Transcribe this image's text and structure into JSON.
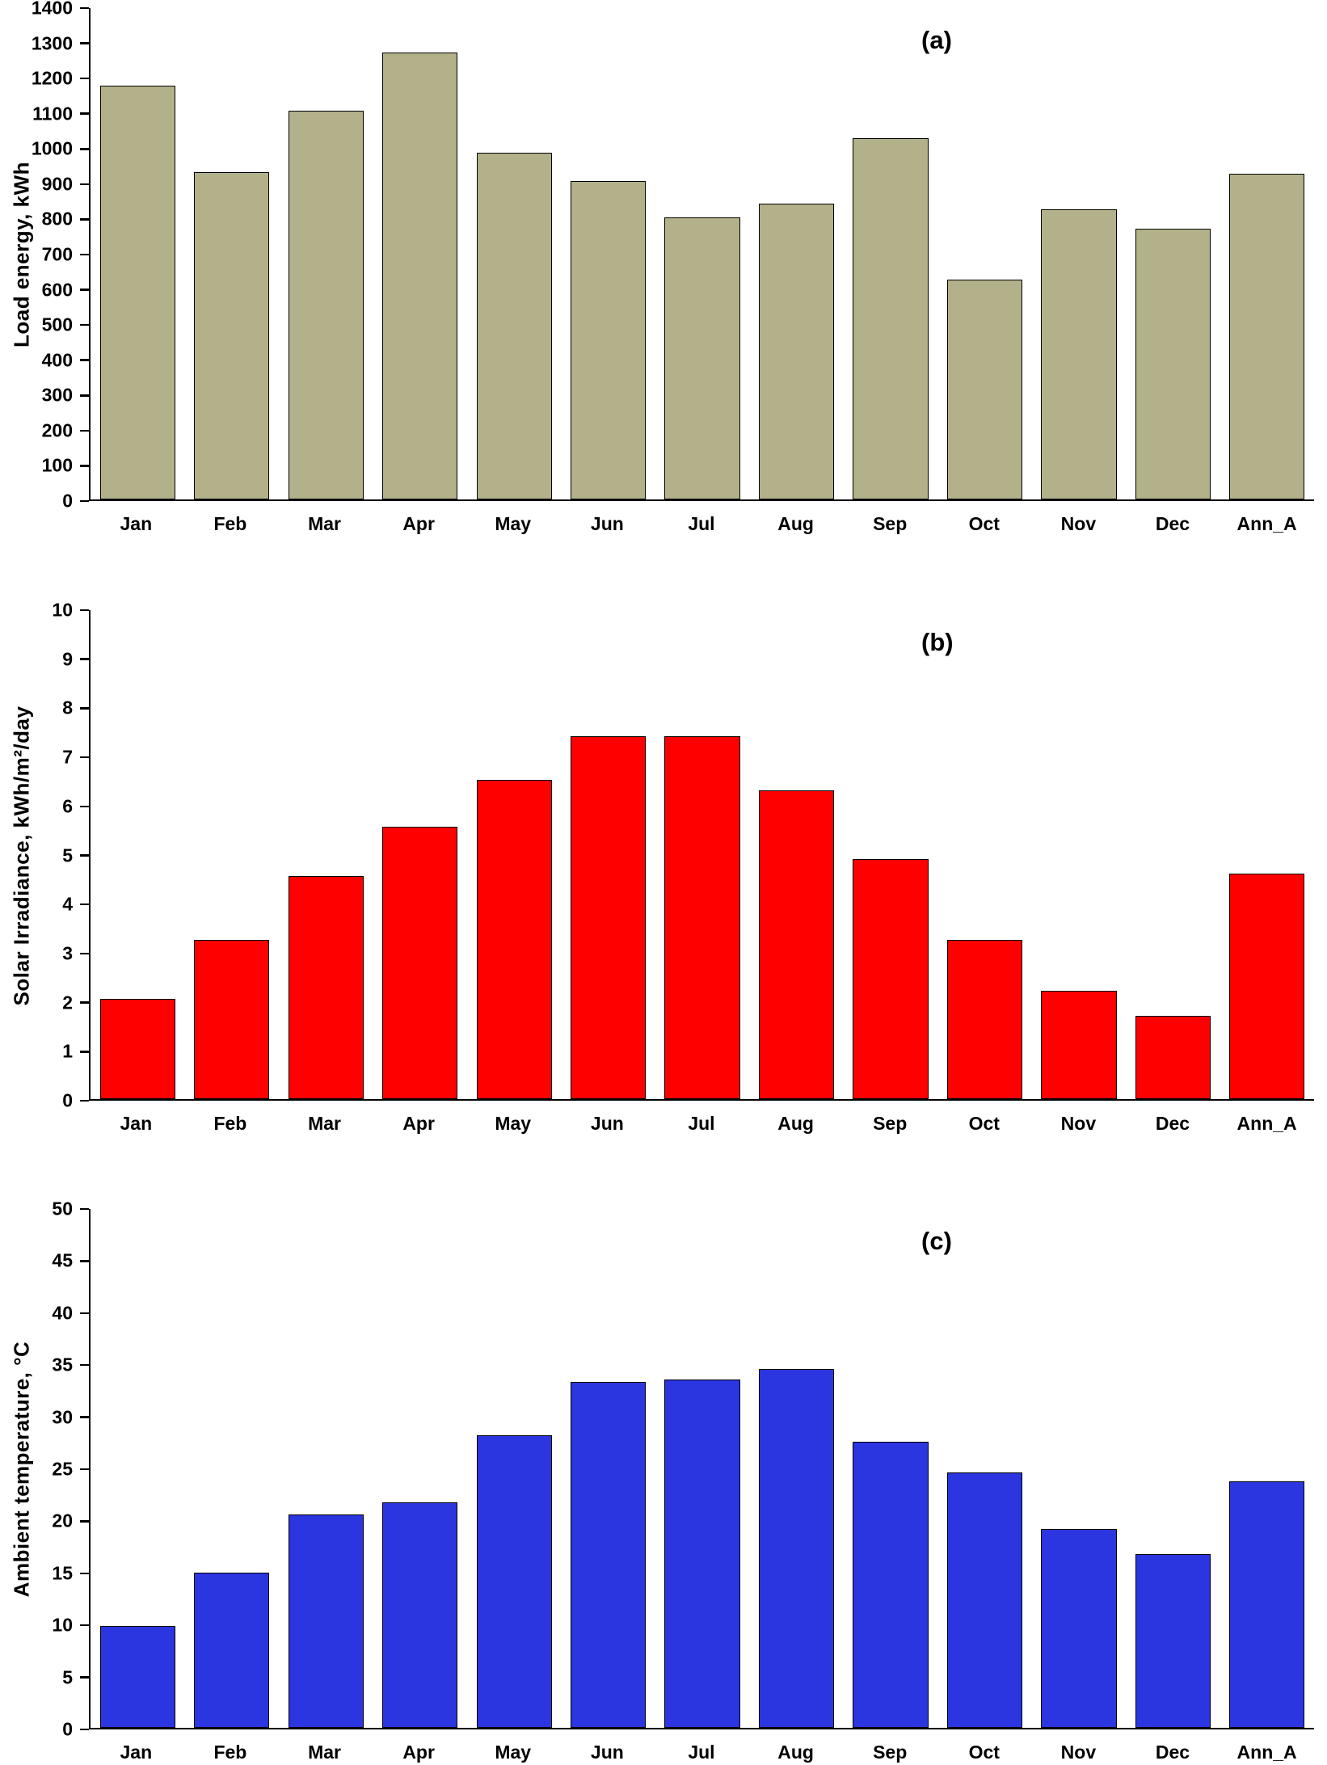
{
  "chart_data": [
    {
      "type": "bar",
      "panel_label": "(a)",
      "title": "",
      "xlabel": "",
      "ylabel": "Load energy, kWh",
      "categories": [
        "Jan",
        "Feb",
        "Mar",
        "Apr",
        "May",
        "Jun",
        "Jul",
        "Aug",
        "Sep",
        "Oct",
        "Nov",
        "Dec",
        "Ann_A"
      ],
      "values": [
        1175,
        930,
        1105,
        1270,
        985,
        905,
        800,
        840,
        1025,
        625,
        825,
        770,
        925
      ],
      "ylim": [
        0,
        1400
      ],
      "ytick_step": 100,
      "bar_color": "#b2b18a",
      "bar_border_color": "#000000",
      "grid": false,
      "legend": false
    },
    {
      "type": "bar",
      "panel_label": "(b)",
      "title": "",
      "xlabel": "",
      "ylabel": "Solar Irradiance, kWh/m²/day",
      "categories": [
        "Jan",
        "Feb",
        "Mar",
        "Apr",
        "May",
        "Jun",
        "Jul",
        "Aug",
        "Sep",
        "Oct",
        "Nov",
        "Dec",
        "Ann_A"
      ],
      "values": [
        2.05,
        3.25,
        4.55,
        5.55,
        6.5,
        7.4,
        7.4,
        6.3,
        4.9,
        3.25,
        2.2,
        1.7,
        4.6
      ],
      "ylim": [
        0,
        10
      ],
      "ytick_step": 1,
      "bar_color": "#ff0000",
      "bar_border_color": "#000000",
      "grid": false,
      "legend": false
    },
    {
      "type": "bar",
      "panel_label": "(c)",
      "title": "",
      "xlabel": "",
      "ylabel": "Ambient temperature, °C",
      "categories": [
        "Jan",
        "Feb",
        "Mar",
        "Apr",
        "May",
        "Jun",
        "Jul",
        "Aug",
        "Sep",
        "Oct",
        "Nov",
        "Dec",
        "Ann_A"
      ],
      "values": [
        9.8,
        14.9,
        20.5,
        21.7,
        28.1,
        33.2,
        33.5,
        34.5,
        27.5,
        24.5,
        19.1,
        16.7,
        23.7
      ],
      "ylim": [
        0,
        50
      ],
      "ytick_step": 5,
      "bar_color": "#2b35e0",
      "bar_border_color": "#000000",
      "grid": false,
      "legend": false
    }
  ]
}
